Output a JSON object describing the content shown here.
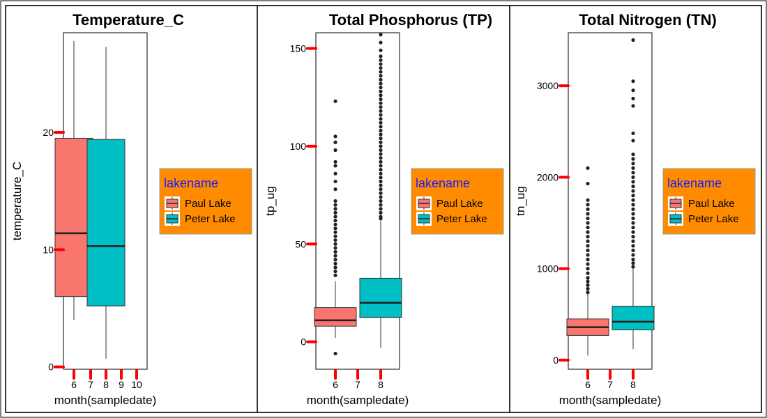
{
  "colors": {
    "paul": "#F8766D",
    "peter": "#00BFC4",
    "tick": "#FF0000",
    "legend_bg": "#FF8C00",
    "legend_title": "#1a1aff",
    "median": "#222222",
    "outlier": "#222222"
  },
  "chart_data": [
    {
      "type": "box",
      "title": "Temperature_C",
      "xlabel": "month(sampledate)",
      "ylabel": "temperature_C",
      "ylim": [
        -0.2,
        28.5
      ],
      "yticks": [
        0,
        10,
        20
      ],
      "xticks": [
        "6",
        "7",
        "8",
        "9",
        "10"
      ],
      "legend": {
        "title": "lakename",
        "entries": [
          "Paul Lake",
          "Peter Lake"
        ],
        "position": "right"
      },
      "series": [
        {
          "name": "Paul Lake",
          "min": 4.0,
          "q1": 6.0,
          "median": 11.4,
          "q3": 19.5,
          "max": 27.8,
          "outliers": []
        },
        {
          "name": "Peter Lake",
          "min": 0.7,
          "q1": 5.2,
          "median": 10.3,
          "q3": 19.4,
          "max": 27.3,
          "outliers": []
        }
      ]
    },
    {
      "type": "box",
      "title": "Total Phosphorus (TP)",
      "xlabel": "month(sampledate)",
      "ylabel": "tp_ug",
      "ylim": [
        -14,
        158
      ],
      "yticks": [
        0,
        50,
        100,
        150
      ],
      "xticks": [
        "6",
        "7",
        "8"
      ],
      "legend": {
        "title": "lakename",
        "entries": [
          "Paul Lake",
          "Peter Lake"
        ],
        "position": "right"
      },
      "series": [
        {
          "name": "Paul Lake",
          "min": 2.0,
          "q1": 8.0,
          "median": 11.0,
          "q3": 17.5,
          "max": 31.0,
          "outliers": [
            -6,
            34,
            36,
            38,
            40,
            42,
            44,
            46,
            48,
            50,
            52,
            54,
            56,
            58,
            60,
            62,
            64,
            66,
            68,
            70,
            72,
            78,
            82,
            86,
            90,
            92,
            98,
            102,
            105,
            123
          ]
        },
        {
          "name": "Peter Lake",
          "min": -3,
          "q1": 12.5,
          "median": 20.0,
          "q3": 32.5,
          "max": 62,
          "outliers": [
            63,
            64,
            66,
            68,
            70,
            72,
            74,
            76,
            78,
            80,
            82,
            84,
            86,
            88,
            90,
            92,
            94,
            96,
            98,
            100,
            102,
            104,
            106,
            108,
            110,
            112,
            114,
            116,
            118,
            120,
            122,
            124,
            126,
            128,
            130,
            132,
            134,
            136,
            138,
            140,
            142,
            144,
            146,
            149,
            153,
            157
          ]
        }
      ]
    },
    {
      "type": "box",
      "title": "Total Nitrogen (TN)",
      "xlabel": "month(sampledate)",
      "ylabel": "tn_ug",
      "ylim": [
        -100,
        3580
      ],
      "yticks": [
        0,
        1000,
        2000,
        3000
      ],
      "xticks": [
        "6",
        "7",
        "8"
      ],
      "legend": {
        "title": "lakename",
        "entries": [
          "Paul Lake",
          "Peter Lake"
        ],
        "position": "right"
      },
      "series": [
        {
          "name": "Paul Lake",
          "min": 50,
          "q1": 270,
          "median": 360,
          "q3": 450,
          "max": 720,
          "outliers": [
            740,
            780,
            820,
            860,
            900,
            950,
            1000,
            1050,
            1100,
            1150,
            1200,
            1250,
            1300,
            1350,
            1400,
            1450,
            1500,
            1550,
            1600,
            1650,
            1700,
            1750,
            1930,
            2100
          ]
        },
        {
          "name": "Peter Lake",
          "min": 120,
          "q1": 330,
          "median": 420,
          "q3": 590,
          "max": 1000,
          "outliers": [
            1020,
            1060,
            1100,
            1150,
            1200,
            1250,
            1300,
            1350,
            1400,
            1450,
            1500,
            1550,
            1600,
            1650,
            1700,
            1750,
            1800,
            1850,
            1900,
            1950,
            2000,
            2050,
            2100,
            2150,
            2200,
            2250,
            2400,
            2480,
            2780,
            2860,
            2950,
            3050,
            3500
          ]
        }
      ]
    }
  ]
}
